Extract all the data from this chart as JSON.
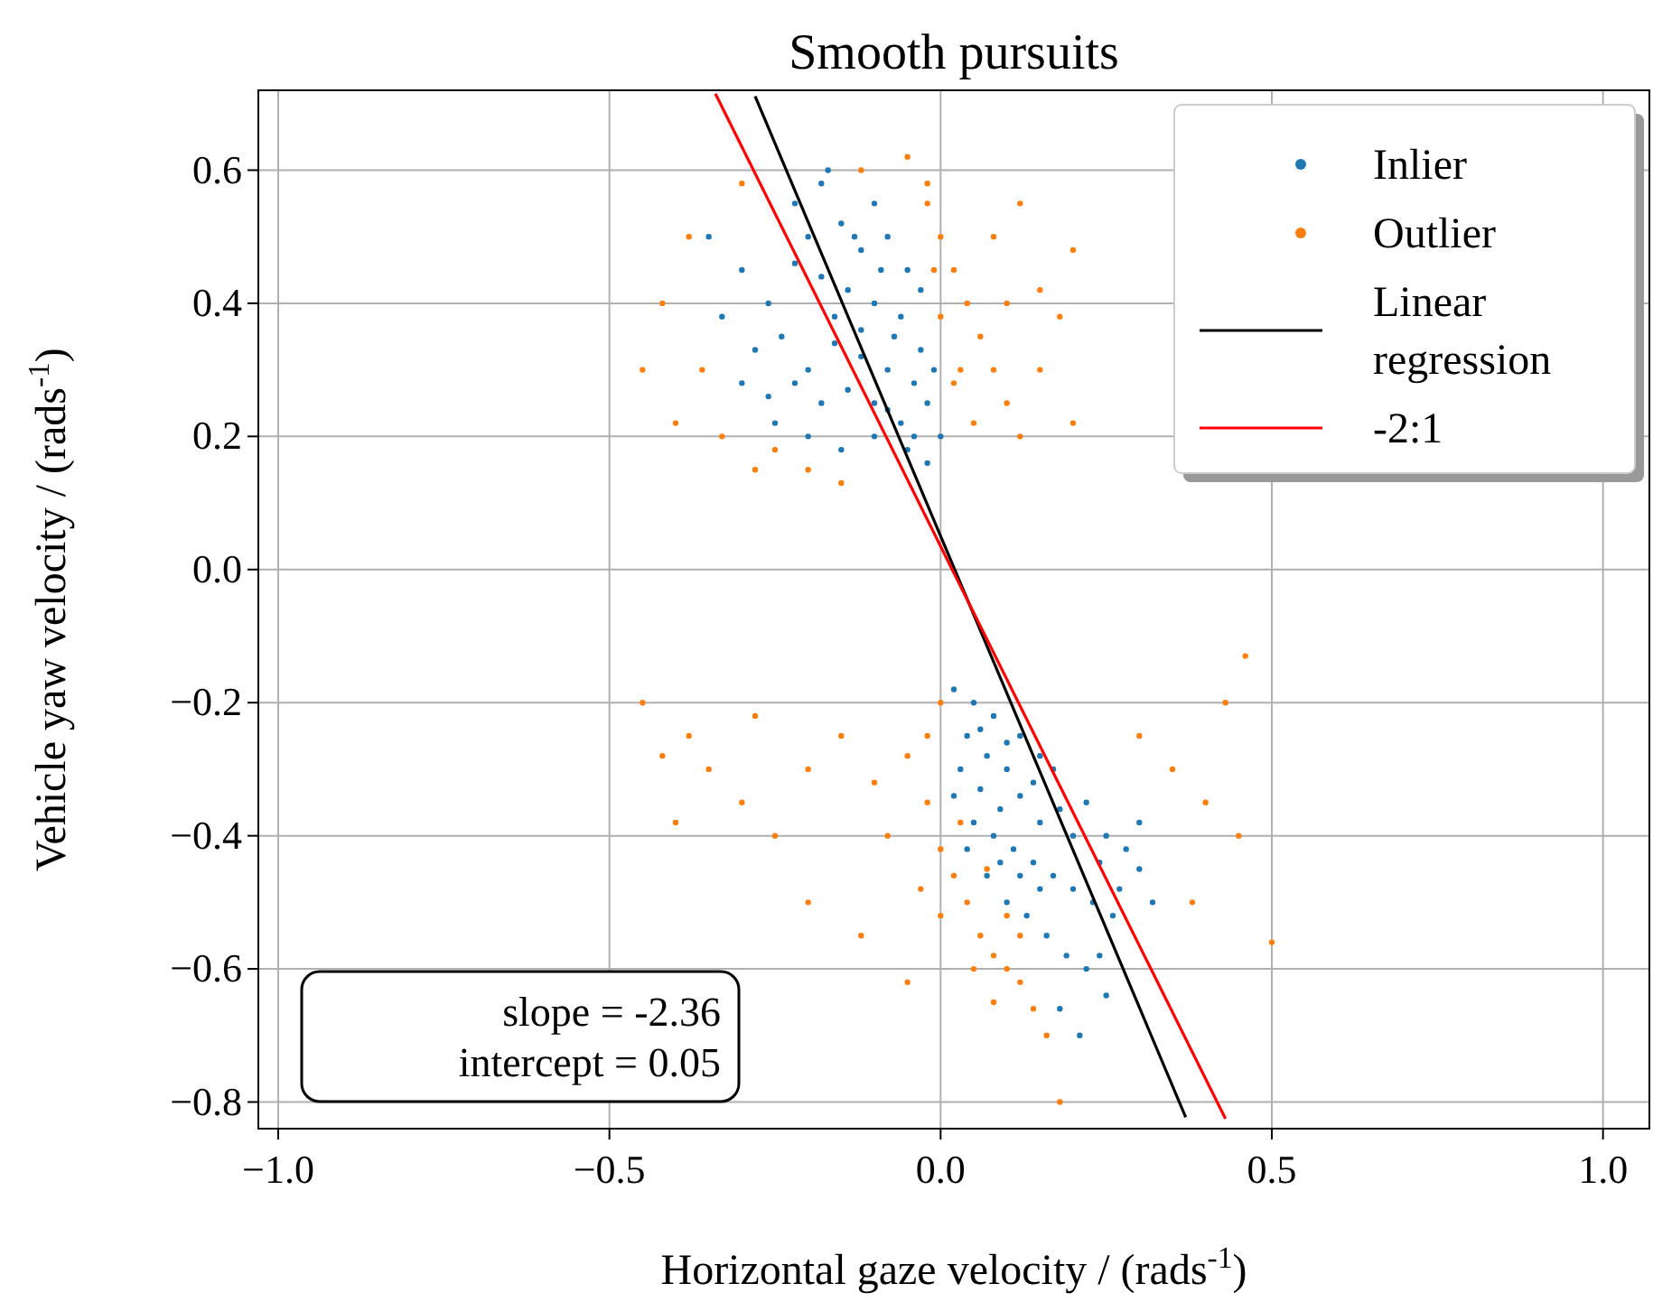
{
  "chart_data": {
    "type": "scatter",
    "title": "Smooth pursuits",
    "xlabel": "Horizontal gaze velocity / (rads$^{-1}$)",
    "ylabel": "Vehicle yaw velocity / (rads$^{-1}$)",
    "xlim": [
      -1.03,
      1.07
    ],
    "ylim": [
      -0.84,
      0.72
    ],
    "xticks": [
      {
        "value": -1,
        "label": "−1.0"
      },
      {
        "value": -0.5,
        "label": "−0.5"
      },
      {
        "value": 0,
        "label": "0.0"
      },
      {
        "value": 0.5,
        "label": "0.5"
      },
      {
        "value": 1,
        "label": "1.0"
      }
    ],
    "yticks": [
      {
        "value": -0.8,
        "label": "−0.8"
      },
      {
        "value": -0.6,
        "label": "−0.6"
      },
      {
        "value": -0.4,
        "label": "−0.4"
      },
      {
        "value": -0.2,
        "label": "−0.2"
      },
      {
        "value": 0,
        "label": "0.0"
      },
      {
        "value": 0.2,
        "label": "0.2"
      },
      {
        "value": 0.4,
        "label": "0.4"
      },
      {
        "value": 0.6,
        "label": "0.6"
      }
    ],
    "grid": true,
    "legend": "top right",
    "annotations": [
      "slope = -2.36",
      "intercept = 0.05"
    ],
    "series": [
      {
        "name": "Inlier",
        "marker": "circle",
        "color": "#1f77b4",
        "x": [
          -0.22,
          -0.2,
          -0.18,
          -0.15,
          -0.12,
          -0.1,
          -0.08,
          -0.05,
          -0.03,
          -0.06,
          -0.1,
          -0.14,
          -0.18,
          -0.22,
          -0.26,
          -0.3,
          -0.33,
          -0.28,
          -0.24,
          -0.2,
          -0.16,
          -0.12,
          -0.08,
          -0.04,
          -0.02,
          -0.06,
          -0.1,
          -0.14,
          -0.18,
          -0.22,
          -0.26,
          -0.2,
          -0.15,
          -0.1,
          -0.05,
          -0.02,
          -0.04,
          -0.08,
          -0.12,
          -0.16,
          -0.07,
          -0.03,
          -0.01,
          -0.09,
          -0.13,
          -0.17,
          -0.35,
          -0.3,
          -0.25,
          0.0,
          0.02,
          0.05,
          0.08,
          0.04,
          0.07,
          0.1,
          0.12,
          0.15,
          0.03,
          0.06,
          0.09,
          0.12,
          0.15,
          0.18,
          0.2,
          0.22,
          0.25,
          0.28,
          0.3,
          0.05,
          0.08,
          0.11,
          0.14,
          0.17,
          0.2,
          0.23,
          0.26,
          0.1,
          0.13,
          0.16,
          0.19,
          0.22,
          0.25,
          0.18,
          0.21,
          0.24,
          0.27,
          0.3,
          0.15,
          0.12,
          0.09,
          0.07,
          0.04,
          0.02,
          0.06,
          0.1,
          0.14,
          0.17,
          0.24,
          0.32
        ],
        "values": [
          0.55,
          0.5,
          0.58,
          0.52,
          0.48,
          0.55,
          0.5,
          0.45,
          0.42,
          0.38,
          0.4,
          0.42,
          0.44,
          0.46,
          0.4,
          0.45,
          0.38,
          0.33,
          0.35,
          0.3,
          0.34,
          0.32,
          0.3,
          0.28,
          0.25,
          0.22,
          0.25,
          0.27,
          0.25,
          0.28,
          0.26,
          0.2,
          0.18,
          0.2,
          0.18,
          0.16,
          0.2,
          0.24,
          0.36,
          0.38,
          0.35,
          0.33,
          0.3,
          0.45,
          0.5,
          0.6,
          0.5,
          0.28,
          0.22,
          0.2,
          -0.18,
          -0.2,
          -0.22,
          -0.25,
          -0.28,
          -0.3,
          -0.25,
          -0.28,
          -0.3,
          -0.33,
          -0.36,
          -0.34,
          -0.38,
          -0.36,
          -0.4,
          -0.35,
          -0.4,
          -0.42,
          -0.45,
          -0.38,
          -0.4,
          -0.42,
          -0.44,
          -0.46,
          -0.48,
          -0.5,
          -0.52,
          -0.5,
          -0.52,
          -0.55,
          -0.58,
          -0.6,
          -0.64,
          -0.66,
          -0.7,
          -0.58,
          -0.48,
          -0.38,
          -0.48,
          -0.46,
          -0.44,
          -0.46,
          -0.42,
          -0.34,
          -0.24,
          -0.26,
          -0.32,
          -0.3,
          -0.44,
          -0.5
        ]
      },
      {
        "name": "Outlier",
        "marker": "circle",
        "color": "#ff7f0e",
        "x": [
          -0.45,
          -0.42,
          -0.4,
          -0.38,
          -0.36,
          -0.33,
          -0.3,
          -0.28,
          -0.25,
          -0.2,
          -0.15,
          -0.12,
          -0.05,
          -0.02,
          0.0,
          0.02,
          0.04,
          0.06,
          0.08,
          0.1,
          0.12,
          0.15,
          0.18,
          0.2,
          0.03,
          0.05,
          0.0,
          -0.01,
          0.02,
          0.08,
          0.12,
          0.1,
          0.15,
          -0.02,
          0.2,
          -0.45,
          -0.42,
          -0.4,
          -0.38,
          -0.35,
          -0.3,
          -0.28,
          -0.25,
          -0.2,
          -0.15,
          -0.1,
          -0.08,
          -0.05,
          -0.02,
          0.0,
          0.02,
          0.04,
          0.06,
          0.08,
          0.1,
          0.12,
          0.14,
          0.16,
          0.05,
          0.08,
          0.0,
          -0.03,
          0.03,
          0.07,
          0.1,
          0.12,
          0.35,
          0.4,
          0.45,
          0.38,
          0.5,
          0.43,
          0.46,
          0.3,
          -0.2,
          -0.12,
          -0.05,
          0.0,
          -0.02,
          0.18
        ],
        "values": [
          0.3,
          0.4,
          0.22,
          0.5,
          0.3,
          0.2,
          0.58,
          0.15,
          0.18,
          0.15,
          0.13,
          0.6,
          0.62,
          0.55,
          0.5,
          0.45,
          0.4,
          0.35,
          0.3,
          0.25,
          0.2,
          0.42,
          0.38,
          0.48,
          0.3,
          0.22,
          0.38,
          0.45,
          0.28,
          0.5,
          0.55,
          0.4,
          0.3,
          0.58,
          0.22,
          -0.2,
          -0.28,
          -0.38,
          -0.25,
          -0.3,
          -0.35,
          -0.22,
          -0.4,
          -0.3,
          -0.25,
          -0.32,
          -0.4,
          -0.28,
          -0.35,
          -0.42,
          -0.46,
          -0.5,
          -0.55,
          -0.58,
          -0.6,
          -0.62,
          -0.66,
          -0.7,
          -0.6,
          -0.65,
          -0.52,
          -0.48,
          -0.38,
          -0.45,
          -0.52,
          -0.55,
          -0.3,
          -0.35,
          -0.4,
          -0.5,
          -0.56,
          -0.2,
          -0.13,
          -0.25,
          -0.5,
          -0.55,
          -0.62,
          -0.2,
          -0.25,
          -0.8
        ]
      },
      {
        "name": "Linear regression",
        "type": "line",
        "color": "#000000",
        "x": [
          -0.28,
          0.37
        ],
        "values": [
          0.711,
          -0.823
        ]
      },
      {
        "name": "-2:1",
        "type": "line",
        "color": "#ff0000",
        "x": [
          -0.34,
          0.43
        ],
        "values": [
          0.715,
          -0.825
        ]
      }
    ]
  }
}
